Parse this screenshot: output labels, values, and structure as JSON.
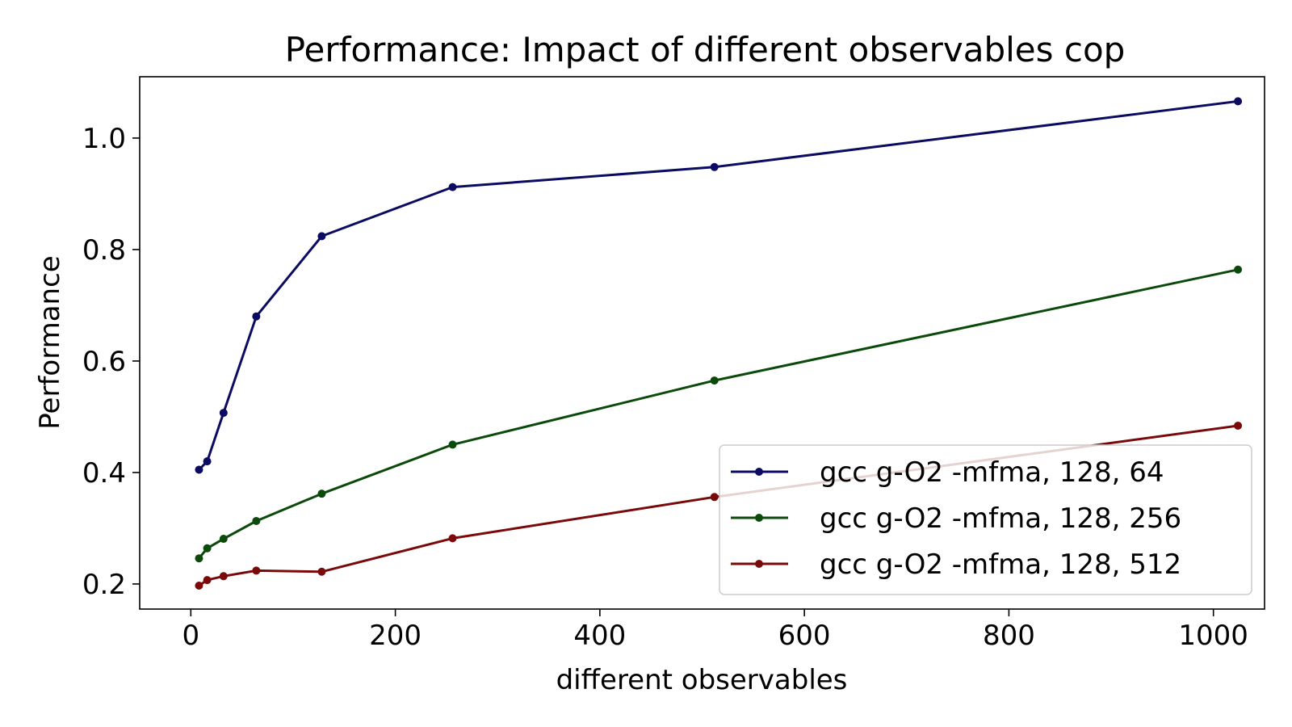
{
  "chart_data": {
    "type": "line",
    "title": "Performance: Impact of different observables cop",
    "xlabel": "different observables",
    "ylabel": "Performance",
    "xlim": [
      -50,
      1050
    ],
    "ylim": [
      0.155,
      1.11
    ],
    "xticks": [
      0,
      200,
      400,
      600,
      800,
      1000
    ],
    "yticks": [
      0.2,
      0.4,
      0.6,
      0.8,
      1.0
    ],
    "xtick_labels": [
      "0",
      "200",
      "400",
      "600",
      "800",
      "1000"
    ],
    "ytick_labels": [
      "0.2",
      "0.4",
      "0.6",
      "0.8",
      "1.0"
    ],
    "grid": false,
    "legend_position": "lower-right",
    "x": [
      8,
      16,
      32,
      64,
      128,
      256,
      512,
      1024
    ],
    "series": [
      {
        "name": "gcc g-O2 -mfma, 128, 64",
        "color": "#0b0b62",
        "values": [
          0.405,
          0.42,
          0.507,
          0.68,
          0.824,
          0.912,
          0.948,
          1.066
        ]
      },
      {
        "name": "gcc g-O2 -mfma, 128, 256",
        "color": "#0c4a0c",
        "values": [
          0.246,
          0.264,
          0.281,
          0.313,
          0.362,
          0.45,
          0.565,
          0.764
        ]
      },
      {
        "name": "gcc g-O2 -mfma, 128, 512",
        "color": "#7a0a0a",
        "values": [
          0.197,
          0.207,
          0.214,
          0.224,
          0.222,
          0.282,
          0.356,
          0.484
        ]
      }
    ]
  }
}
